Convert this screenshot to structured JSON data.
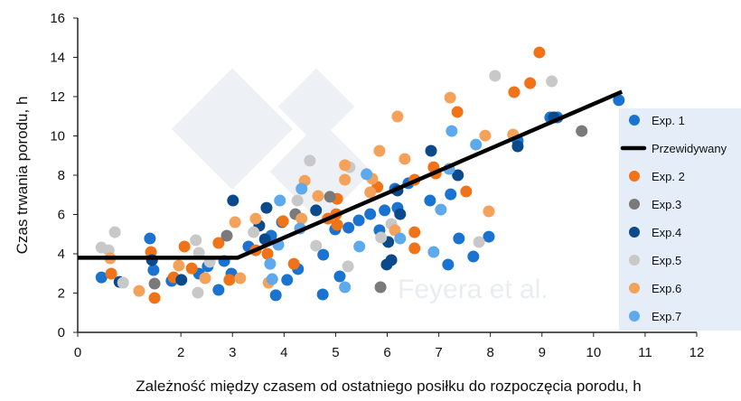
{
  "watermark": "Feyera et al.",
  "chart_data": {
    "type": "scatter",
    "xlabel": "Zależność między czasem od ostatniego posiłku do rozpoczęcia porodu, h",
    "ylabel": "Czas trwania porodu, h",
    "xlim": [
      0,
      12
    ],
    "ylim": [
      0,
      16
    ],
    "xticks": [
      "0",
      "2",
      "3",
      "4",
      "5",
      "6",
      "7",
      "8",
      "9",
      "10",
      "11",
      "12"
    ],
    "xtick_values": [
      0,
      2,
      3,
      4,
      5,
      6,
      7,
      8,
      9,
      10,
      11,
      12
    ],
    "yticks": [
      "0",
      "2",
      "4",
      "6",
      "8",
      "10",
      "12",
      "14",
      "16"
    ],
    "ytick_values": [
      0,
      2,
      4,
      6,
      8,
      10,
      12,
      14,
      16
    ],
    "grid": false,
    "legend_position": "right",
    "fit_line": {
      "name": "Przewidywany",
      "color": "#000000",
      "points": [
        [
          0,
          3.8
        ],
        [
          3.1,
          3.8
        ],
        [
          10.55,
          12.25
        ]
      ]
    },
    "series": [
      {
        "name": "Exp. 1",
        "color": "#1a73d1",
        "points": [
          [
            0.46,
            2.8
          ],
          [
            1.4,
            4.78
          ],
          [
            1.47,
            3.17
          ],
          [
            1.82,
            2.62
          ],
          [
            2.35,
            2.99
          ],
          [
            2.52,
            3.36
          ],
          [
            2.84,
            3.63
          ],
          [
            2.98,
            2.99
          ],
          [
            2.73,
            2.16
          ],
          [
            3.31,
            4.37
          ],
          [
            3.84,
            1.89
          ],
          [
            4.06,
            2.67
          ],
          [
            4.27,
            3.22
          ],
          [
            4.76,
            3.95
          ],
          [
            4.99,
            5.24
          ],
          [
            5.25,
            5.33
          ],
          [
            5.45,
            5.7
          ],
          [
            5.67,
            6.02
          ],
          [
            5.95,
            6.21
          ],
          [
            6.15,
            7.31
          ],
          [
            6.41,
            7.59
          ],
          [
            6.83,
            6.71
          ],
          [
            7.23,
            7.03
          ],
          [
            7.39,
            4.78
          ],
          [
            7.67,
            3.86
          ],
          [
            7.97,
            4.87
          ],
          [
            8.53,
            9.75
          ],
          [
            9.3,
            10.94
          ],
          [
            10.49,
            11.82
          ],
          [
            4.75,
            1.93
          ],
          [
            5.08,
            2.85
          ],
          [
            6.2,
            6.34
          ],
          [
            5.85,
            5.2
          ],
          [
            3.75,
            4.92
          ],
          [
            3.96,
            5.61
          ],
          [
            7.18,
            3.45
          ],
          [
            9.16,
            10.94
          ]
        ]
      },
      {
        "name": "Exp. 2",
        "color": "#f07318",
        "points": [
          [
            0.65,
            2.99
          ],
          [
            1.42,
            4.09
          ],
          [
            1.49,
            1.75
          ],
          [
            2.07,
            4.37
          ],
          [
            1.86,
            2.8
          ],
          [
            2.21,
            3.26
          ],
          [
            2.73,
            4.55
          ],
          [
            2.94,
            2.67
          ],
          [
            3.45,
            4.18
          ],
          [
            3.68,
            4.0
          ],
          [
            3.98,
            5.66
          ],
          [
            4.19,
            3.49
          ],
          [
            4.85,
            5.79
          ],
          [
            5.01,
            6.02
          ],
          [
            5.03,
            6.8
          ],
          [
            5.03,
            5.47
          ],
          [
            5.81,
            7.4
          ],
          [
            6.53,
            7.77
          ],
          [
            6.9,
            8.41
          ],
          [
            6.94,
            8.09
          ],
          [
            6.53,
            5.1
          ],
          [
            6.53,
            4.28
          ],
          [
            7.53,
            7.17
          ],
          [
            7.36,
            11.22
          ],
          [
            8.46,
            12.23
          ],
          [
            8.77,
            12.69
          ],
          [
            8.95,
            14.25
          ]
        ]
      },
      {
        "name": "Exp.3",
        "color": "#7a7a7a",
        "points": [
          [
            1.49,
            2.48
          ],
          [
            2.89,
            4.92
          ],
          [
            4.22,
            6.02
          ],
          [
            4.89,
            6.9
          ],
          [
            5.87,
            2.3
          ],
          [
            9.77,
            10.25
          ]
        ]
      },
      {
        "name": "Exp.4",
        "color": "#0b4a8a",
        "points": [
          [
            3.01,
            6.71
          ],
          [
            3.66,
            6.34
          ],
          [
            3.52,
            5.43
          ],
          [
            3.63,
            4.74
          ],
          [
            1.44,
            3.68
          ],
          [
            2.01,
            2.67
          ],
          [
            0.81,
            2.57
          ],
          [
            4.62,
            6.21
          ],
          [
            6.85,
            9.24
          ],
          [
            7.37,
            8.0
          ],
          [
            6.2,
            7.22
          ],
          [
            6.25,
            6.02
          ],
          [
            6.02,
            4.6
          ],
          [
            6.08,
            3.68
          ],
          [
            5.99,
            3.45
          ],
          [
            8.53,
            9.47
          ],
          [
            9.23,
            10.94
          ]
        ]
      },
      {
        "name": "Exp.5",
        "color": "#c8c8c8",
        "points": [
          [
            0.72,
            5.1
          ],
          [
            0.46,
            4.32
          ],
          [
            0.6,
            4.18
          ],
          [
            0.88,
            2.53
          ],
          [
            2.29,
            4.69
          ],
          [
            2.35,
            4.05
          ],
          [
            2.33,
            2.02
          ],
          [
            2.56,
            3.59
          ],
          [
            3.41,
            5.1
          ],
          [
            4.26,
            6.71
          ],
          [
            4.5,
            8.74
          ],
          [
            4.62,
            4.41
          ],
          [
            5.24,
            3.36
          ],
          [
            5.88,
            4.83
          ],
          [
            6.08,
            5.52
          ],
          [
            7.78,
            4.6
          ],
          [
            8.09,
            13.06
          ],
          [
            9.19,
            12.78
          ],
          [
            5.27,
            8.41
          ]
        ]
      },
      {
        "name": "Exp.6",
        "color": "#f4a25a",
        "points": [
          [
            0.63,
            3.77
          ],
          [
            1.19,
            2.11
          ],
          [
            1.96,
            3.4
          ],
          [
            2.47,
            2.76
          ],
          [
            3.05,
            5.61
          ],
          [
            3.15,
            2.76
          ],
          [
            3.45,
            5.79
          ],
          [
            3.7,
            2.53
          ],
          [
            4.4,
            7.72
          ],
          [
            4.34,
            5.79
          ],
          [
            4.66,
            6.94
          ],
          [
            6.2,
            10.99
          ],
          [
            7.22,
            11.95
          ],
          [
            7.9,
            10.02
          ],
          [
            8.44,
            10.07
          ],
          [
            7.97,
            6.16
          ],
          [
            6.34,
            8.83
          ],
          [
            5.85,
            9.24
          ],
          [
            5.18,
            8.51
          ],
          [
            5.18,
            7.77
          ],
          [
            5.71,
            7.82
          ],
          [
            6.15,
            5.2
          ],
          [
            5.67,
            7.13
          ]
        ]
      },
      {
        "name": "Exp.7",
        "color": "#5ea8ec",
        "points": [
          [
            4.34,
            7.31
          ],
          [
            3.92,
            6.71
          ],
          [
            4.31,
            5.29
          ],
          [
            3.89,
            4.46
          ],
          [
            3.73,
            3.49
          ],
          [
            3.77,
            2.71
          ],
          [
            5.6,
            8.05
          ],
          [
            5.46,
            4.37
          ],
          [
            6.25,
            4.78
          ],
          [
            6.9,
            4.09
          ],
          [
            7.04,
            6.25
          ],
          [
            7.25,
            10.25
          ],
          [
            7.72,
            9.56
          ],
          [
            5.18,
            2.3
          ],
          [
            7.2,
            8.32
          ]
        ]
      }
    ],
    "legend": [
      "Exp. 1",
      "Przewidywany",
      "Exp. 2",
      "Exp.3",
      "Exp.4",
      "Exp.5",
      "Exp.6",
      "Exp.7"
    ]
  }
}
